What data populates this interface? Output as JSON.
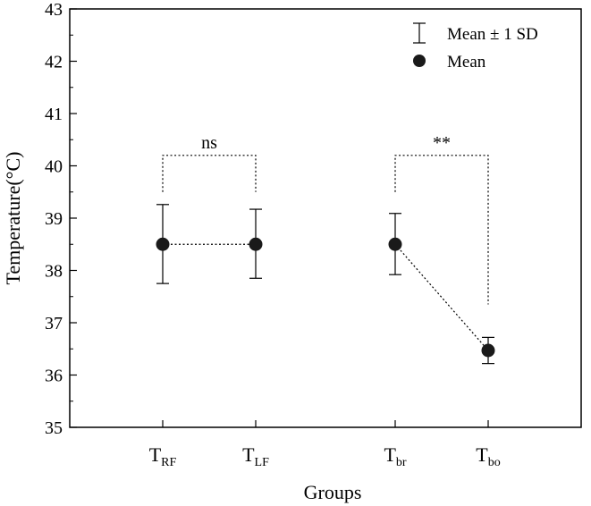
{
  "chart_data": {
    "type": "scatter",
    "title": "",
    "xlabel": "Groups",
    "ylabel": "Temperature(°C)",
    "ylim": [
      35,
      43
    ],
    "y_major_ticks": [
      35,
      36,
      37,
      38,
      39,
      40,
      41,
      42,
      43
    ],
    "grid": false,
    "categories": [
      {
        "base": "T",
        "sub": "RF"
      },
      {
        "base": "T",
        "sub": "LF"
      },
      {
        "base": "T",
        "sub": "br"
      },
      {
        "base": "T",
        "sub": "bo"
      }
    ],
    "x_positions": [
      1,
      2,
      3.5,
      4.5
    ],
    "xlim": [
      0,
      5.5
    ],
    "series": [
      {
        "name": "Mean",
        "values": [
          38.5,
          38.5,
          38.5,
          36.47
        ]
      }
    ],
    "error_bars": {
      "name": "Mean ± 1 SD",
      "lower": [
        37.75,
        37.85,
        37.92,
        36.22
      ],
      "upper": [
        39.26,
        39.17,
        39.09,
        36.72
      ]
    },
    "connectors": [
      [
        0,
        1
      ],
      [
        2,
        3
      ]
    ],
    "significance": [
      {
        "from": 0,
        "to": 1,
        "label": "ns",
        "y": 40.2,
        "drop_to": [
          39.5,
          39.5
        ]
      },
      {
        "from": 2,
        "to": 3,
        "label": "**",
        "y": 40.2,
        "drop_to": [
          39.5,
          37.35
        ]
      }
    ],
    "legend": {
      "position": "top-right",
      "entries": [
        "Mean ± 1 SD",
        "Mean"
      ]
    }
  }
}
